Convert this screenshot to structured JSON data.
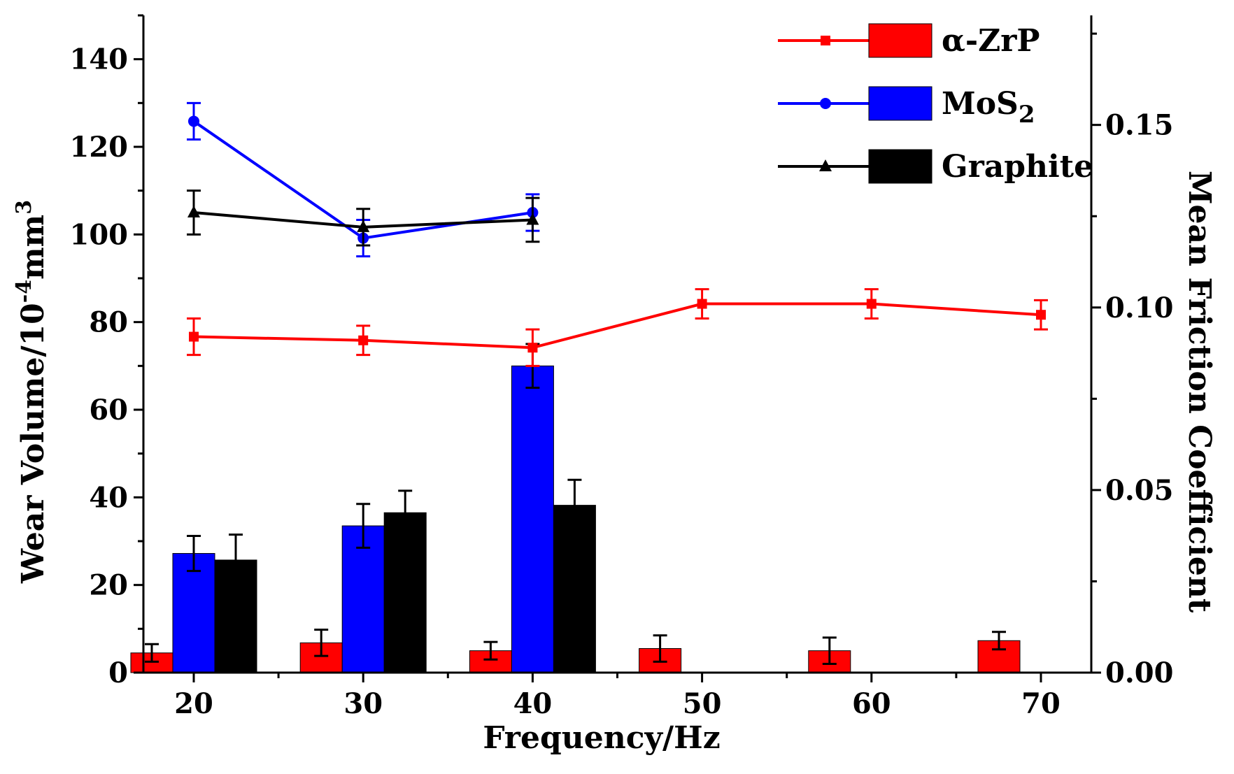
{
  "chart_data": {
    "type": "bar+line",
    "xlabel": "Frequency/Hz",
    "ylabel_left": {
      "main": "Wear Volume/10",
      "sup": "-4",
      "unit": "mm",
      "unit_sup": "3"
    },
    "ylabel_right": "Mean Friction Coefficient",
    "categories": [
      "20",
      "30",
      "40",
      "50",
      "60",
      "70"
    ],
    "ylim_left": [
      0,
      150
    ],
    "yticks_left": [
      "0",
      "20",
      "40",
      "60",
      "80",
      "100",
      "120",
      "140"
    ],
    "ylim_right": [
      0.0,
      0.18
    ],
    "yticks_right": [
      "0.00",
      "0.05",
      "0.10",
      "0.15"
    ],
    "bar_series": [
      {
        "name": "α-ZrP",
        "color": "#ff0000",
        "values": [
          4.5,
          6.8,
          5.0,
          5.5,
          5.0,
          7.3
        ],
        "errors": [
          2.0,
          3.0,
          2.0,
          3.0,
          3.0,
          2.0
        ]
      },
      {
        "name": "MoS2",
        "color": "#0000ff",
        "values": [
          27.2,
          33.5,
          70.0,
          null,
          null,
          null
        ],
        "errors": [
          4.0,
          5.0,
          5.0,
          null,
          null,
          null
        ]
      },
      {
        "name": "Graphite",
        "color": "#000000",
        "values": [
          25.7,
          36.5,
          38.2,
          null,
          null,
          null
        ],
        "errors": [
          5.8,
          5.0,
          5.8,
          null,
          null,
          null
        ]
      }
    ],
    "line_series": [
      {
        "name": "α-ZrP",
        "color": "#ff0000",
        "marker": "square",
        "values": [
          0.092,
          0.091,
          0.089,
          0.101,
          0.101,
          0.098
        ],
        "errors": [
          0.005,
          0.004,
          0.005,
          0.004,
          0.004,
          0.004
        ]
      },
      {
        "name": "MoS2",
        "color": "#0000ff",
        "marker": "circle",
        "values": [
          0.151,
          0.119,
          0.126,
          null,
          null,
          null
        ],
        "errors": [
          0.005,
          0.005,
          0.005,
          null,
          null,
          null
        ]
      },
      {
        "name": "Graphite",
        "color": "#000000",
        "marker": "triangle",
        "values": [
          0.126,
          0.122,
          0.124,
          null,
          null,
          null
        ],
        "errors": [
          0.006,
          0.005,
          0.006,
          null,
          null,
          null
        ]
      }
    ],
    "legend": {
      "position": "top-right",
      "entries": [
        {
          "main": "α-ZrP"
        },
        {
          "main": "MoS",
          "sub": "2"
        },
        {
          "main": "Graphite"
        }
      ]
    }
  }
}
